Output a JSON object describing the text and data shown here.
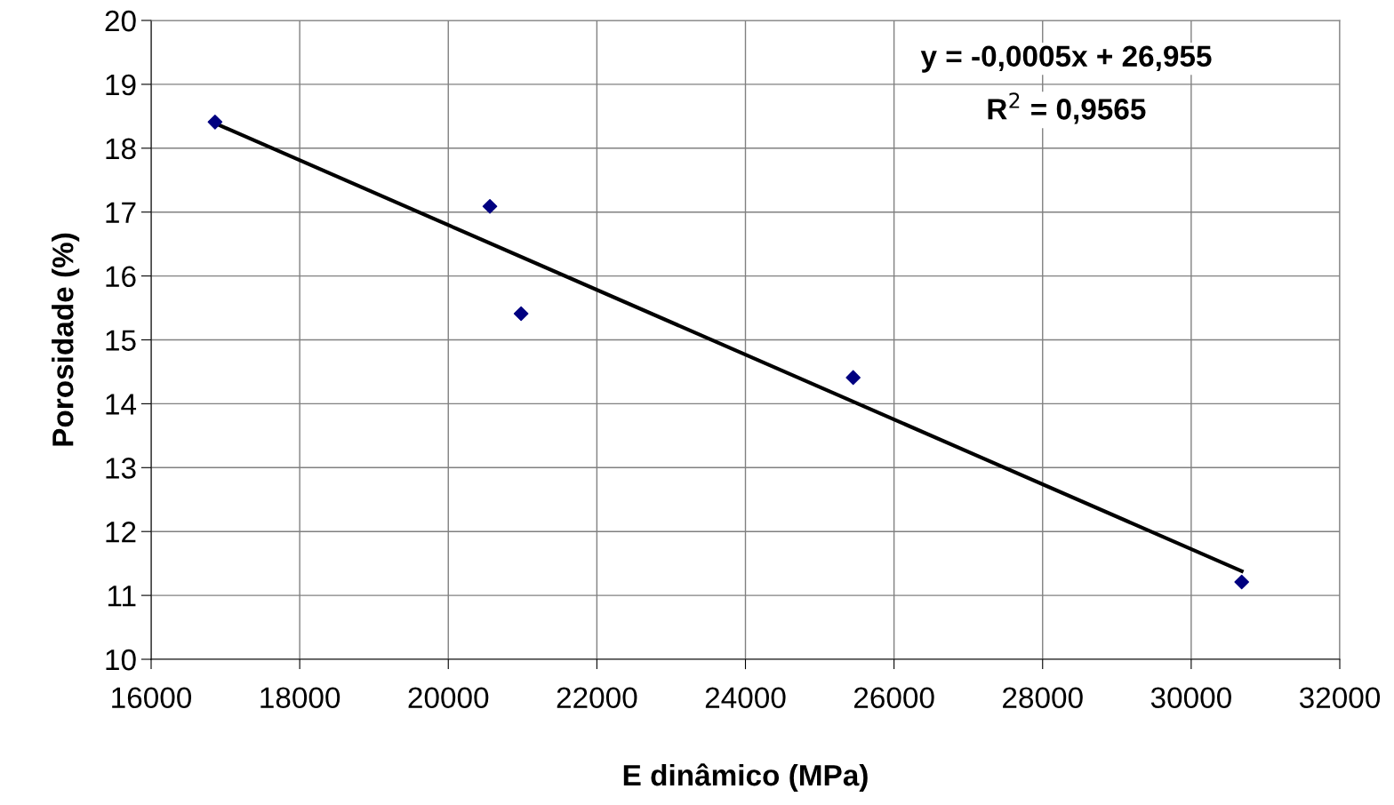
{
  "chart_data": {
    "type": "scatter",
    "xlabel": "E dinâmico (MPa)",
    "ylabel": "Porosidade (%)",
    "xlim": [
      16000,
      32000
    ],
    "xticks": [
      16000,
      18000,
      20000,
      22000,
      24000,
      26000,
      28000,
      30000,
      32000
    ],
    "ylim": [
      10,
      20
    ],
    "yticks": [
      10,
      11,
      12,
      13,
      14,
      15,
      16,
      17,
      18,
      19,
      20
    ],
    "grid": true,
    "marker": "diamond",
    "series": [
      {
        "color": "#000080",
        "x": [
          16860,
          20560,
          20980,
          25450,
          30680
        ],
        "values": [
          18.41,
          17.09,
          15.41,
          14.41,
          11.21
        ]
      },
      {
        "type": "line",
        "color": "#000000",
        "marker": "none",
        "line_style": "solid",
        "x": [
          16860,
          30680
        ],
        "values": [
          18.39,
          11.38
        ]
      }
    ],
    "annotations": [
      "y = -0,0005x + 26,955",
      "R$^{2}$ = 0,9565"
    ]
  }
}
